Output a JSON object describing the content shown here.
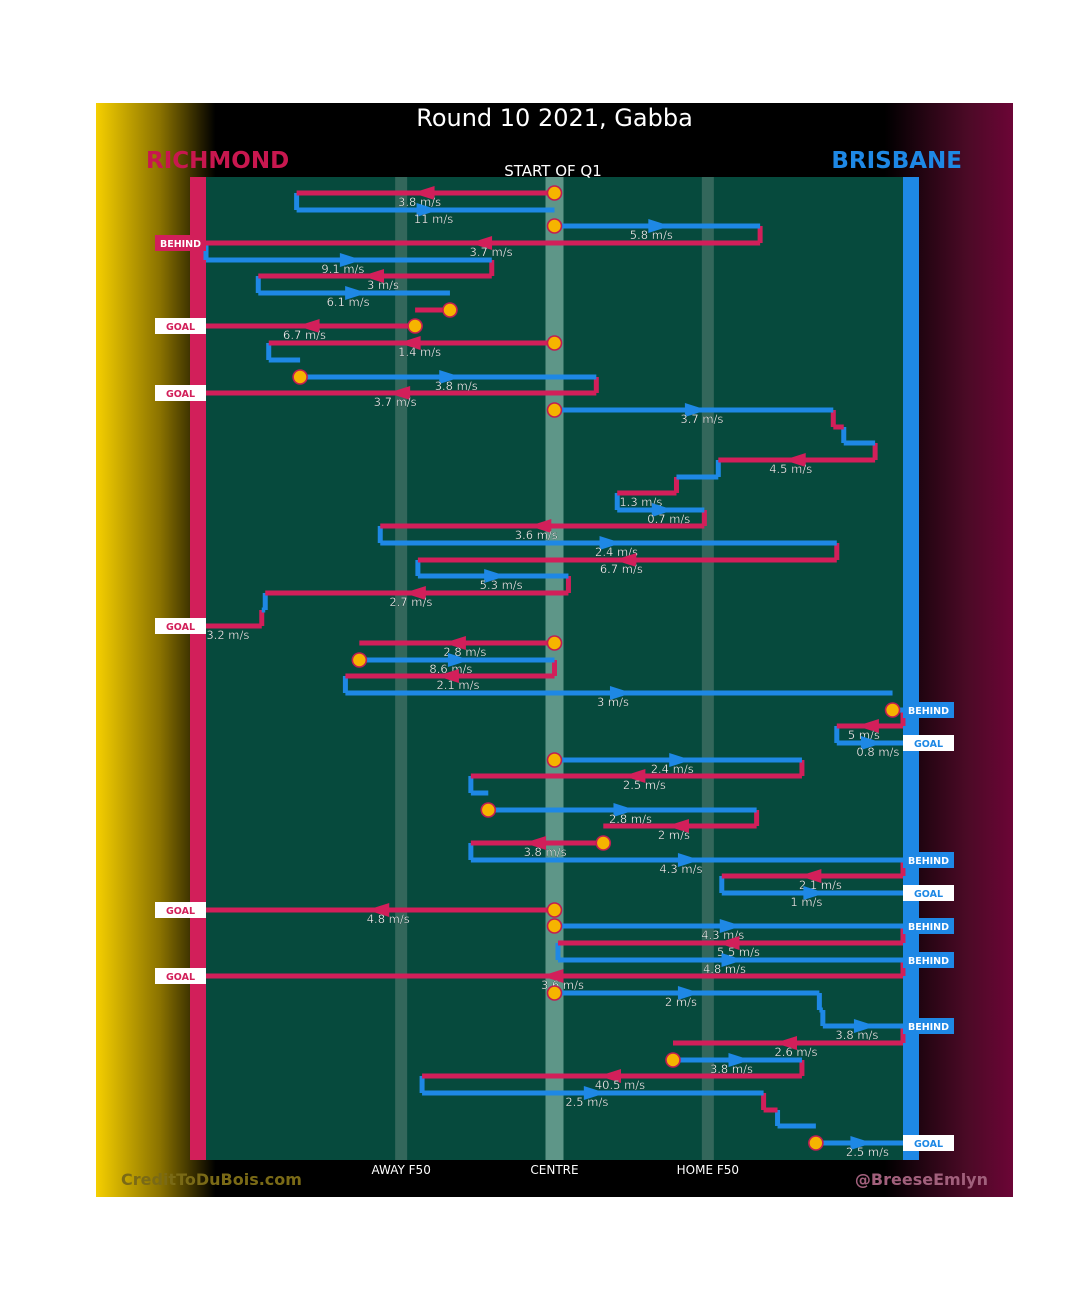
{
  "title": "Round 10 2021, Gabba",
  "teams": {
    "left": "RICHMOND",
    "right": "BRISBANE"
  },
  "colors": {
    "richmond": "#d21f5a",
    "brisbane": "#1e88e5",
    "field": "#064a3d",
    "stoppage": "#f6b400"
  },
  "footer": {
    "left": "CreditToDuBois.com",
    "right": "@BreeseEmlyn"
  },
  "chart_data": {
    "type": "line",
    "title": "Round 10 2021, Gabba",
    "subtitle": "START OF Q1",
    "x_ticks": [
      {
        "pos": 0.28,
        "label": "AWAY F50"
      },
      {
        "pos": 0.5,
        "label": "CENTRE"
      },
      {
        "pos": 0.72,
        "label": "HOME F50"
      }
    ],
    "chains": [
      {
        "team": "Richmond",
        "y": 193,
        "x_start": 0.5,
        "x_end": 0.13,
        "speed": "3.8 m/s",
        "start": "stoppage"
      },
      {
        "team": "Brisbane",
        "y": 210,
        "x_start": 0.13,
        "x_end": 0.5,
        "speed": "11 m/s"
      },
      {
        "team": "Brisbane",
        "y": 226,
        "x_start": 0.5,
        "x_end": 0.795,
        "speed": "5.8 m/s",
        "start": "stoppage"
      },
      {
        "team": "Richmond",
        "y": 243,
        "x_start": 0.795,
        "x_end": 0.0,
        "speed": "3.7 m/s",
        "result": "BEHIND"
      },
      {
        "team": "Brisbane",
        "y": 260,
        "x_start": 0.0,
        "x_end": 0.41,
        "speed": "9.1 m/s"
      },
      {
        "team": "Richmond",
        "y": 276,
        "x_start": 0.41,
        "x_end": 0.075,
        "speed": "3 m/s"
      },
      {
        "team": "Brisbane",
        "y": 293,
        "x_start": 0.075,
        "x_end": 0.35,
        "speed": "6.1 m/s"
      },
      {
        "team": "Richmond",
        "y": 310,
        "x_start": 0.35,
        "x_end": 0.3,
        "speed": "",
        "start": "stoppage"
      },
      {
        "team": "Richmond",
        "y": 326,
        "x_start": 0.3,
        "x_end": 0.0,
        "speed": "6.7 m/s",
        "result": "GOAL",
        "start": "stoppage"
      },
      {
        "team": "Richmond",
        "y": 343,
        "x_start": 0.5,
        "x_end": 0.09,
        "speed": "1.4 m/s",
        "start": "stoppage"
      },
      {
        "team": "Brisbane",
        "y": 360,
        "x_start": 0.09,
        "x_end": 0.135,
        "speed": ""
      },
      {
        "team": "Brisbane",
        "y": 377,
        "x_start": 0.135,
        "x_end": 0.56,
        "speed": "3.8 m/s",
        "start": "stoppage"
      },
      {
        "team": "Richmond",
        "y": 393,
        "x_start": 0.56,
        "x_end": 0.0,
        "speed": "3.7 m/s",
        "result": "GOAL"
      },
      {
        "team": "Brisbane",
        "y": 410,
        "x_start": 0.5,
        "x_end": 0.9,
        "speed": "3.7 m/s",
        "start": "stoppage"
      },
      {
        "team": "Richmond",
        "y": 427,
        "x_start": 0.9,
        "x_end": 0.915,
        "speed": ""
      },
      {
        "team": "Brisbane",
        "y": 443,
        "x_start": 0.915,
        "x_end": 0.96,
        "speed": ""
      },
      {
        "team": "Richmond",
        "y": 460,
        "x_start": 0.96,
        "x_end": 0.735,
        "speed": "4.5 m/s"
      },
      {
        "team": "Brisbane",
        "y": 477,
        "x_start": 0.735,
        "x_end": 0.675,
        "speed": ""
      },
      {
        "team": "Richmond",
        "y": 493,
        "x_start": 0.675,
        "x_end": 0.59,
        "speed": "1.3 m/s"
      },
      {
        "team": "Brisbane",
        "y": 510,
        "x_start": 0.59,
        "x_end": 0.715,
        "speed": "0.7 m/s"
      },
      {
        "team": "Richmond",
        "y": 526,
        "x_start": 0.715,
        "x_end": 0.25,
        "speed": "3.6 m/s"
      },
      {
        "team": "Brisbane",
        "y": 543,
        "x_start": 0.25,
        "x_end": 0.905,
        "speed": "2.4 m/s"
      },
      {
        "team": "Richmond",
        "y": 560,
        "x_start": 0.905,
        "x_end": 0.304,
        "speed": "6.7 m/s"
      },
      {
        "team": "Brisbane",
        "y": 576,
        "x_start": 0.304,
        "x_end": 0.52,
        "speed": "5.3 m/s"
      },
      {
        "team": "Richmond",
        "y": 593,
        "x_start": 0.52,
        "x_end": 0.085,
        "speed": "2.7 m/s"
      },
      {
        "team": "Brisbane",
        "y": 610,
        "x_start": 0.085,
        "x_end": 0.08,
        "speed": ""
      },
      {
        "team": "Richmond",
        "y": 626,
        "x_start": 0.08,
        "x_end": 0.0,
        "speed": "3.2 m/s",
        "result": "GOAL"
      },
      {
        "team": "Richmond",
        "y": 643,
        "x_start": 0.5,
        "x_end": 0.22,
        "speed": "2.8 m/s",
        "start": "stoppage"
      },
      {
        "team": "Brisbane",
        "y": 660,
        "x_start": 0.22,
        "x_end": 0.5,
        "speed": "8.6 m/s",
        "start": "stoppage"
      },
      {
        "team": "Richmond",
        "y": 676,
        "x_start": 0.5,
        "x_end": 0.2,
        "speed": "2.1 m/s"
      },
      {
        "team": "Brisbane",
        "y": 693,
        "x_start": 0.2,
        "x_end": 0.985,
        "speed": "3 m/s"
      },
      {
        "team": "Brisbane",
        "y": 710,
        "x_start": 0.985,
        "x_end": 1.0,
        "speed": "",
        "result": "BEHIND",
        "start": "stoppage"
      },
      {
        "team": "Richmond",
        "y": 726,
        "x_start": 1.0,
        "x_end": 0.905,
        "speed": "5 m/s"
      },
      {
        "team": "Brisbane",
        "y": 743,
        "x_start": 0.905,
        "x_end": 1.0,
        "speed": "0.8 m/s",
        "result": "GOAL"
      },
      {
        "team": "Brisbane",
        "y": 760,
        "x_start": 0.5,
        "x_end": 0.855,
        "speed": "2.4 m/s",
        "start": "stoppage"
      },
      {
        "team": "Richmond",
        "y": 776,
        "x_start": 0.855,
        "x_end": 0.38,
        "speed": "2.5 m/s"
      },
      {
        "team": "Brisbane",
        "y": 793,
        "x_start": 0.38,
        "x_end": 0.405,
        "speed": ""
      },
      {
        "team": "Brisbane",
        "y": 810,
        "x_start": 0.405,
        "x_end": 0.79,
        "speed": "2.8 m/s",
        "start": "stoppage"
      },
      {
        "team": "Richmond",
        "y": 826,
        "x_start": 0.79,
        "x_end": 0.57,
        "speed": "2 m/s"
      },
      {
        "team": "Richmond",
        "y": 843,
        "x_start": 0.57,
        "x_end": 0.38,
        "speed": "3.8 m/s",
        "start": "stoppage"
      },
      {
        "team": "Brisbane",
        "y": 860,
        "x_start": 0.38,
        "x_end": 1.0,
        "speed": "4.3 m/s",
        "result": "BEHIND"
      },
      {
        "team": "Richmond",
        "y": 876,
        "x_start": 1.0,
        "x_end": 0.74,
        "speed": "2.1 m/s"
      },
      {
        "team": "Brisbane",
        "y": 893,
        "x_start": 0.74,
        "x_end": 1.0,
        "speed": "1 m/s",
        "result": "GOAL"
      },
      {
        "team": "Richmond",
        "y": 910,
        "x_start": 0.5,
        "x_end": 0.0,
        "speed": "4.8 m/s",
        "result": "GOAL",
        "start": "stoppage"
      },
      {
        "team": "Brisbane",
        "y": 926,
        "x_start": 0.5,
        "x_end": 1.0,
        "speed": "4.3 m/s",
        "result": "BEHIND",
        "start": "stoppage"
      },
      {
        "team": "Richmond",
        "y": 943,
        "x_start": 1.0,
        "x_end": 0.505,
        "speed": "5.5 m/s"
      },
      {
        "team": "Brisbane",
        "y": 960,
        "x_start": 0.505,
        "x_end": 1.0,
        "speed": "4.8 m/s",
        "result": "BEHIND"
      },
      {
        "team": "Richmond",
        "y": 976,
        "x_start": 1.0,
        "x_end": 0.0,
        "speed": "3.6 m/s",
        "result": "GOAL"
      },
      {
        "team": "Brisbane",
        "y": 993,
        "x_start": 0.5,
        "x_end": 0.88,
        "speed": "2 m/s",
        "start": "stoppage"
      },
      {
        "team": "Brisbane",
        "y": 1010,
        "x_start": 0.88,
        "x_end": 0.885,
        "speed": ""
      },
      {
        "team": "Brisbane",
        "y": 1026,
        "x_start": 0.885,
        "x_end": 1.0,
        "speed": "3.8 m/s",
        "result": "BEHIND"
      },
      {
        "team": "Richmond",
        "y": 1043,
        "x_start": 1.0,
        "x_end": 0.67,
        "speed": "2.6 m/s"
      },
      {
        "team": "Brisbane",
        "y": 1060,
        "x_start": 0.67,
        "x_end": 0.855,
        "speed": "3.8 m/s",
        "start": "stoppage"
      },
      {
        "team": "Richmond",
        "y": 1076,
        "x_start": 0.855,
        "x_end": 0.31,
        "speed": "40.5 m/s"
      },
      {
        "team": "Brisbane",
        "y": 1093,
        "x_start": 0.31,
        "x_end": 0.8,
        "speed": "2.5 m/s"
      },
      {
        "team": "Richmond",
        "y": 1110,
        "x_start": 0.8,
        "x_end": 0.82,
        "speed": ""
      },
      {
        "team": "Brisbane",
        "y": 1126,
        "x_start": 0.82,
        "x_end": 0.875,
        "speed": ""
      },
      {
        "team": "Brisbane",
        "y": 1143,
        "x_start": 0.875,
        "x_end": 1.0,
        "speed": "2.5 m/s",
        "result": "GOAL",
        "start": "stoppage"
      }
    ]
  }
}
